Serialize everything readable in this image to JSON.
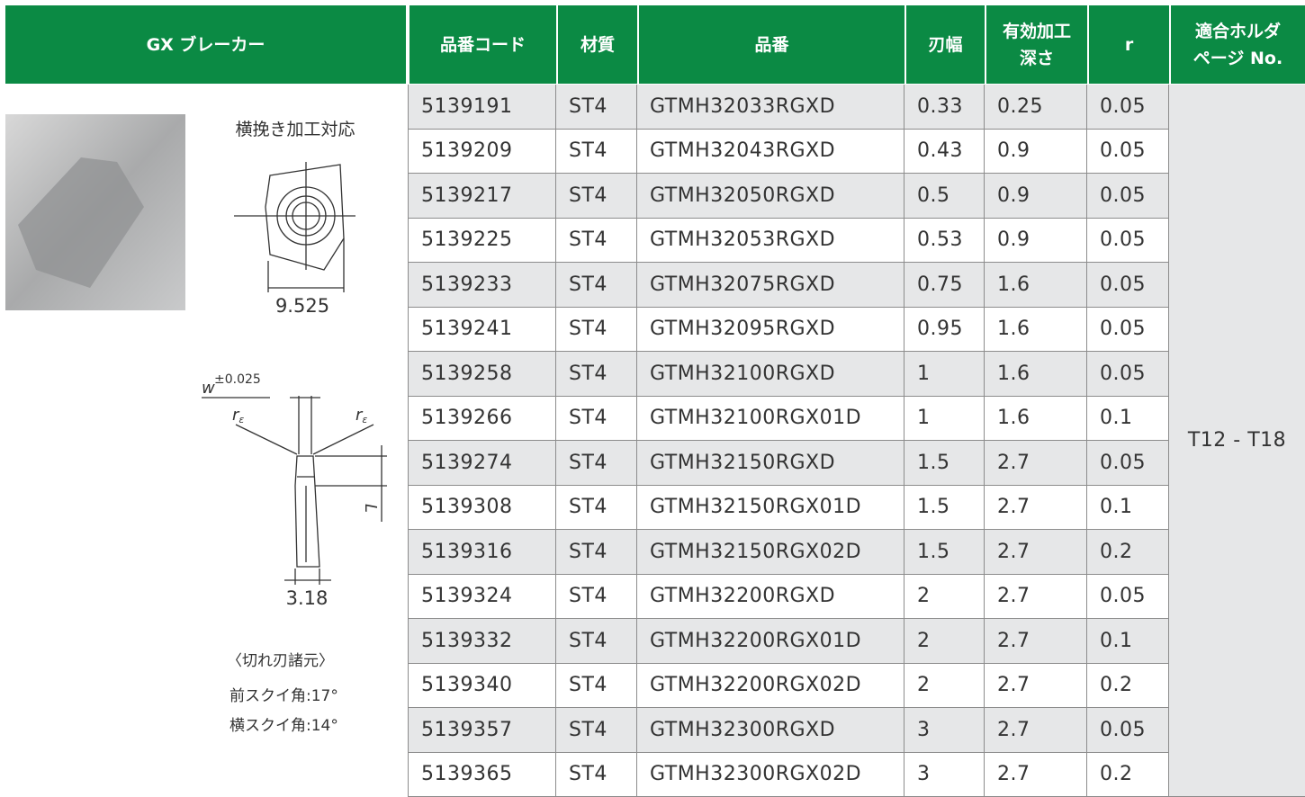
{
  "header": {
    "title": "GX ブレーカー",
    "columns": [
      [
        "品番コード"
      ],
      [
        "材質"
      ],
      [
        "品番"
      ],
      [
        "刃幅"
      ],
      [
        "有効加工",
        "深さ"
      ],
      [
        "r"
      ],
      [
        "適合ホルダ",
        "ページ No."
      ]
    ]
  },
  "side": {
    "application": "横挽き加工対応",
    "insert_size": "9.525",
    "width_symbol": "w",
    "width_tolerance": "±0.025",
    "corner_symbol": "r",
    "corner_subscript": "ε",
    "length_symbol": "L",
    "thickness": "3.18",
    "specs_title": "〈切れ刃諸元〉",
    "specs": [
      "前スクイ角:17°",
      "横スクイ角:14°"
    ]
  },
  "table": {
    "holder": "T12 - T18",
    "rows": [
      [
        "5139191",
        "ST4",
        "GTMH32033RGXD",
        "0.33",
        "0.25",
        "0.05"
      ],
      [
        "5139209",
        "ST4",
        "GTMH32043RGXD",
        "0.43",
        "0.9",
        "0.05"
      ],
      [
        "5139217",
        "ST4",
        "GTMH32050RGXD",
        "0.5",
        "0.9",
        "0.05"
      ],
      [
        "5139225",
        "ST4",
        "GTMH32053RGXD",
        "0.53",
        "0.9",
        "0.05"
      ],
      [
        "5139233",
        "ST4",
        "GTMH32075RGXD",
        "0.75",
        "1.6",
        "0.05"
      ],
      [
        "5139241",
        "ST4",
        "GTMH32095RGXD",
        "0.95",
        "1.6",
        "0.05"
      ],
      [
        "5139258",
        "ST4",
        "GTMH32100RGXD",
        "1",
        "1.6",
        "0.05"
      ],
      [
        "5139266",
        "ST4",
        "GTMH32100RGX01D",
        "1",
        "1.6",
        "0.1"
      ],
      [
        "5139274",
        "ST4",
        "GTMH32150RGXD",
        "1.5",
        "2.7",
        "0.05"
      ],
      [
        "5139308",
        "ST4",
        "GTMH32150RGX01D",
        "1.5",
        "2.7",
        "0.1"
      ],
      [
        "5139316",
        "ST4",
        "GTMH32150RGX02D",
        "1.5",
        "2.7",
        "0.2"
      ],
      [
        "5139324",
        "ST4",
        "GTMH32200RGXD",
        "2",
        "2.7",
        "0.05"
      ],
      [
        "5139332",
        "ST4",
        "GTMH32200RGX01D",
        "2",
        "2.7",
        "0.1"
      ],
      [
        "5139340",
        "ST4",
        "GTMH32200RGX02D",
        "2",
        "2.7",
        "0.2"
      ],
      [
        "5139357",
        "ST4",
        "GTMH32300RGXD",
        "3",
        "2.7",
        "0.05"
      ],
      [
        "5139365",
        "ST4",
        "GTMH32300RGX02D",
        "3",
        "2.7",
        "0.2"
      ]
    ]
  }
}
